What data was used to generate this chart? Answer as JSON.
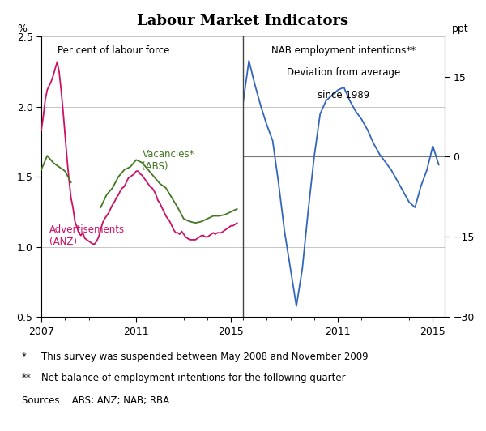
{
  "title": "Labour Market Indicators",
  "left_ylabel": "%",
  "right_ylabel": "ppt",
  "left_label1": "Per cent of labour force",
  "right_label1": "NAB employment intentions**",
  "right_label2": "Deviation from average",
  "right_label3": "since 1989",
  "vacancies_label": "Vacancies*\n(ABS)",
  "ads_label": "Advertisements\n(ANZ)",
  "footnote1": "*  This survey was suspended between May 2008 and November 2009",
  "footnote2": "** Net balance of employment intentions for the following quarter",
  "sources": "Sources:  ABS; ANZ; NAB; RBA",
  "left_ylim": [
    0.5,
    2.5
  ],
  "left_yticks": [
    0.5,
    1.0,
    1.5,
    2.0,
    2.5
  ],
  "right_ylim": [
    -30,
    22.5
  ],
  "right_yticks": [
    -30,
    -15,
    0,
    15
  ],
  "color_ads": "#CC1166",
  "color_vac": "#447722",
  "color_nab": "#3366BB",
  "color_divider": "#666666",
  "color_grid": "#BBBBBB",
  "ads_x": [
    2007.0,
    2007.083,
    2007.167,
    2007.25,
    2007.333,
    2007.417,
    2007.5,
    2007.583,
    2007.667,
    2007.75,
    2007.833,
    2007.917,
    2008.0,
    2008.083,
    2008.167,
    2008.25,
    2008.333,
    2008.417,
    2008.5,
    2008.583,
    2008.667,
    2008.75,
    2008.833,
    2008.917,
    2009.0,
    2009.083,
    2009.167,
    2009.25,
    2009.333,
    2009.417,
    2009.5,
    2009.583,
    2009.667,
    2009.75,
    2009.833,
    2009.917,
    2010.0,
    2010.083,
    2010.167,
    2010.25,
    2010.333,
    2010.417,
    2010.5,
    2010.583,
    2010.667,
    2010.75,
    2010.833,
    2010.917,
    2011.0,
    2011.083,
    2011.167,
    2011.25,
    2011.333,
    2011.417,
    2011.5,
    2011.583,
    2011.667,
    2011.75,
    2011.833,
    2011.917,
    2012.0,
    2012.083,
    2012.167,
    2012.25,
    2012.333,
    2012.417,
    2012.5,
    2012.583,
    2012.667,
    2012.75,
    2012.833,
    2012.917,
    2013.0,
    2013.083,
    2013.167,
    2013.25,
    2013.333,
    2013.417,
    2013.5,
    2013.583,
    2013.667,
    2013.75,
    2013.833,
    2013.917,
    2014.0,
    2014.083,
    2014.167,
    2014.25,
    2014.333,
    2014.417,
    2014.5,
    2014.583,
    2014.667,
    2014.75,
    2014.833,
    2014.917,
    2015.0,
    2015.083,
    2015.167,
    2015.25
  ],
  "ads_y": [
    1.83,
    1.93,
    2.05,
    2.12,
    2.15,
    2.18,
    2.22,
    2.27,
    2.32,
    2.25,
    2.12,
    1.97,
    1.8,
    1.63,
    1.48,
    1.35,
    1.28,
    1.18,
    1.14,
    1.1,
    1.08,
    1.1,
    1.06,
    1.05,
    1.04,
    1.03,
    1.02,
    1.02,
    1.04,
    1.07,
    1.12,
    1.17,
    1.2,
    1.22,
    1.24,
    1.27,
    1.3,
    1.32,
    1.35,
    1.37,
    1.4,
    1.42,
    1.43,
    1.46,
    1.49,
    1.5,
    1.51,
    1.52,
    1.54,
    1.54,
    1.52,
    1.51,
    1.49,
    1.47,
    1.45,
    1.43,
    1.42,
    1.4,
    1.37,
    1.33,
    1.31,
    1.28,
    1.25,
    1.22,
    1.2,
    1.18,
    1.15,
    1.12,
    1.1,
    1.1,
    1.09,
    1.11,
    1.09,
    1.07,
    1.06,
    1.05,
    1.05,
    1.05,
    1.05,
    1.06,
    1.07,
    1.08,
    1.08,
    1.07,
    1.07,
    1.08,
    1.09,
    1.1,
    1.09,
    1.1,
    1.1,
    1.1,
    1.11,
    1.12,
    1.13,
    1.14,
    1.15,
    1.15,
    1.16,
    1.17
  ],
  "vac_x": [
    2007.0,
    2007.25,
    2007.5,
    2007.75,
    2008.0,
    2008.25,
    2009.5,
    2009.75,
    2010.0,
    2010.25,
    2010.5,
    2010.75,
    2011.0,
    2011.25,
    2011.5,
    2011.75,
    2012.0,
    2012.25,
    2012.5,
    2012.75,
    2013.0,
    2013.25,
    2013.5,
    2013.75,
    2014.0,
    2014.25,
    2014.5,
    2014.75,
    2015.0,
    2015.25
  ],
  "vac_y": [
    1.55,
    1.65,
    1.6,
    1.57,
    1.54,
    1.46,
    1.28,
    1.37,
    1.42,
    1.5,
    1.55,
    1.57,
    1.62,
    1.6,
    1.55,
    1.5,
    1.45,
    1.42,
    1.35,
    1.28,
    1.2,
    1.18,
    1.17,
    1.18,
    1.2,
    1.22,
    1.22,
    1.23,
    1.25,
    1.27
  ],
  "vac_break": [
    0,
    6
  ],
  "nab_x": [
    2007.0,
    2007.25,
    2007.5,
    2007.75,
    2008.0,
    2008.25,
    2008.5,
    2008.75,
    2009.0,
    2009.25,
    2009.5,
    2009.75,
    2010.0,
    2010.25,
    2010.5,
    2010.75,
    2011.0,
    2011.25,
    2011.5,
    2011.75,
    2012.0,
    2012.25,
    2012.5,
    2012.75,
    2013.0,
    2013.25,
    2013.5,
    2013.75,
    2014.0,
    2014.25,
    2014.5,
    2014.75,
    2015.0,
    2015.25
  ],
  "nab_y": [
    10.0,
    18.0,
    13.5,
    9.5,
    6.0,
    3.0,
    -5.0,
    -14.0,
    -21.0,
    -28.0,
    -21.0,
    -10.0,
    0.0,
    8.0,
    10.5,
    11.5,
    12.5,
    13.0,
    10.5,
    8.5,
    7.0,
    5.0,
    2.5,
    0.5,
    -1.0,
    -2.5,
    -4.5,
    -6.5,
    -8.5,
    -9.5,
    -5.5,
    -2.5,
    2.0,
    -1.5
  ]
}
